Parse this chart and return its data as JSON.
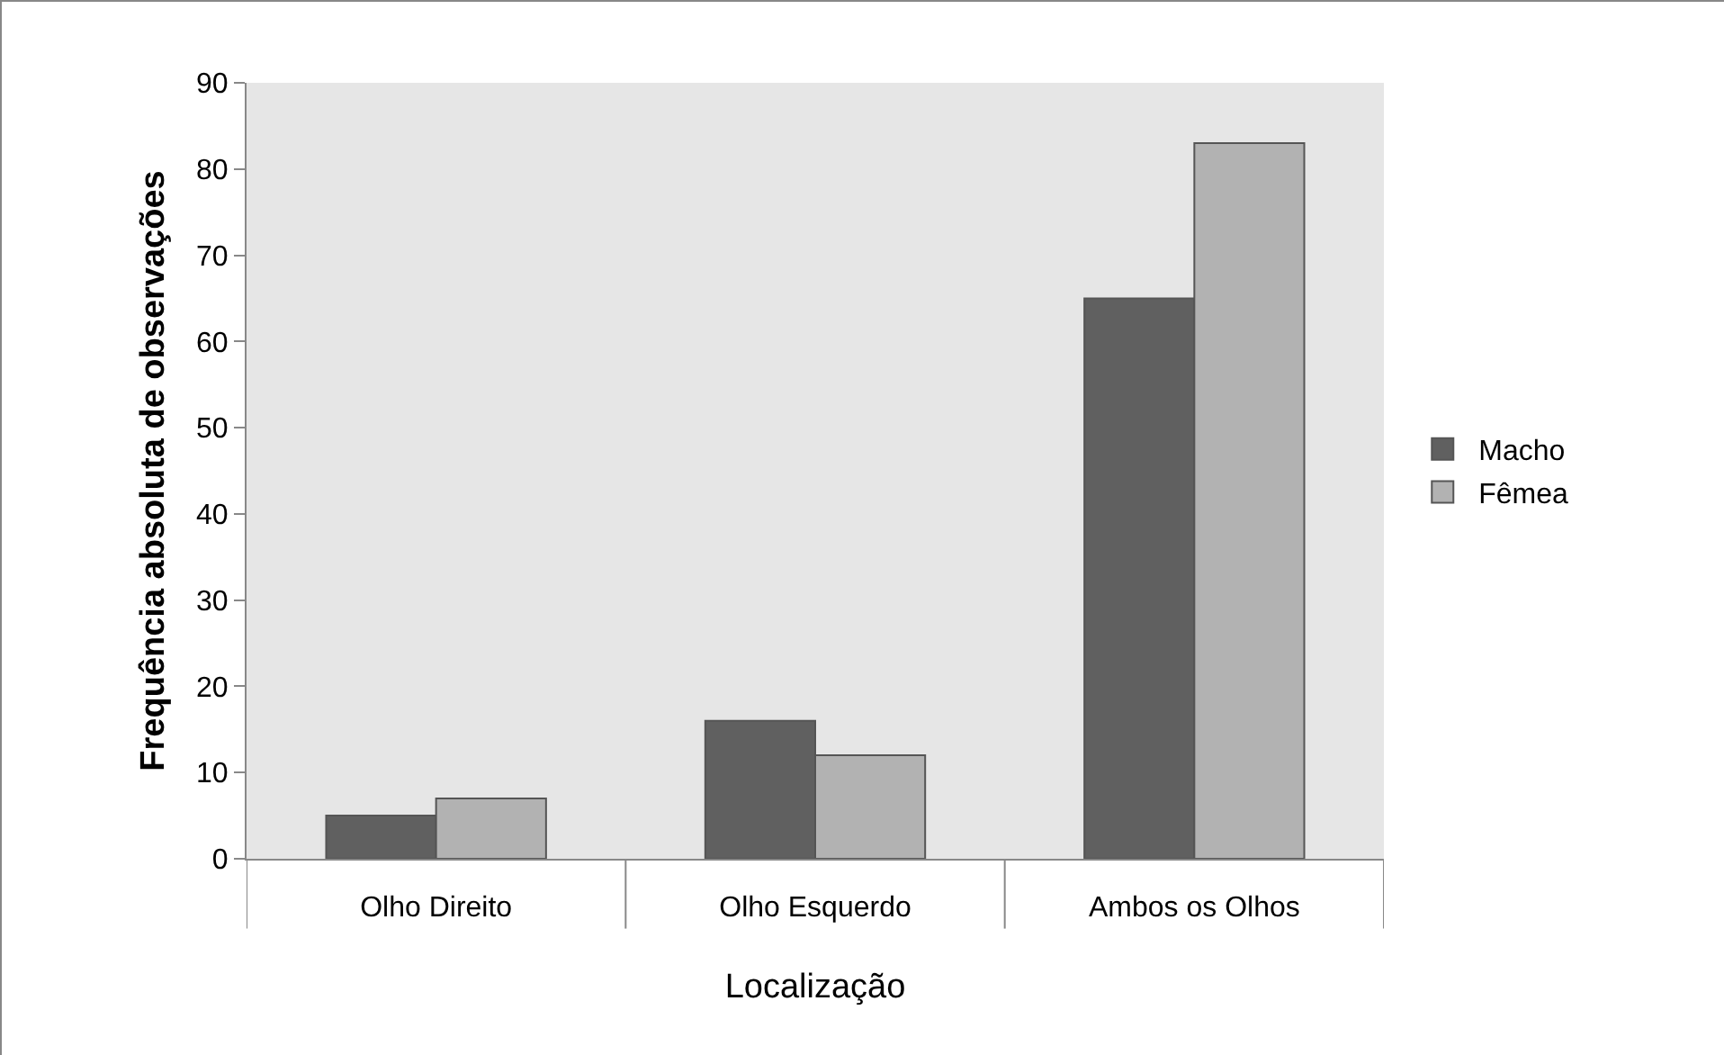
{
  "chart_data": {
    "type": "bar",
    "categories": [
      "Olho Direito",
      "Olho Esquerdo",
      "Ambos os Olhos"
    ],
    "series": [
      {
        "name": "Macho",
        "color": "#606060",
        "values": [
          5,
          16,
          65
        ]
      },
      {
        "name": "Fêmea",
        "color": "#b2b2b2",
        "values": [
          7,
          12,
          83
        ]
      }
    ],
    "xlabel": "Localização",
    "ylabel": "Frequência absoluta de observações",
    "ylim": [
      0,
      90
    ],
    "yticks": [
      0,
      10,
      20,
      30,
      40,
      50,
      60,
      70,
      80,
      90
    ],
    "grid": false,
    "legend": "right"
  }
}
